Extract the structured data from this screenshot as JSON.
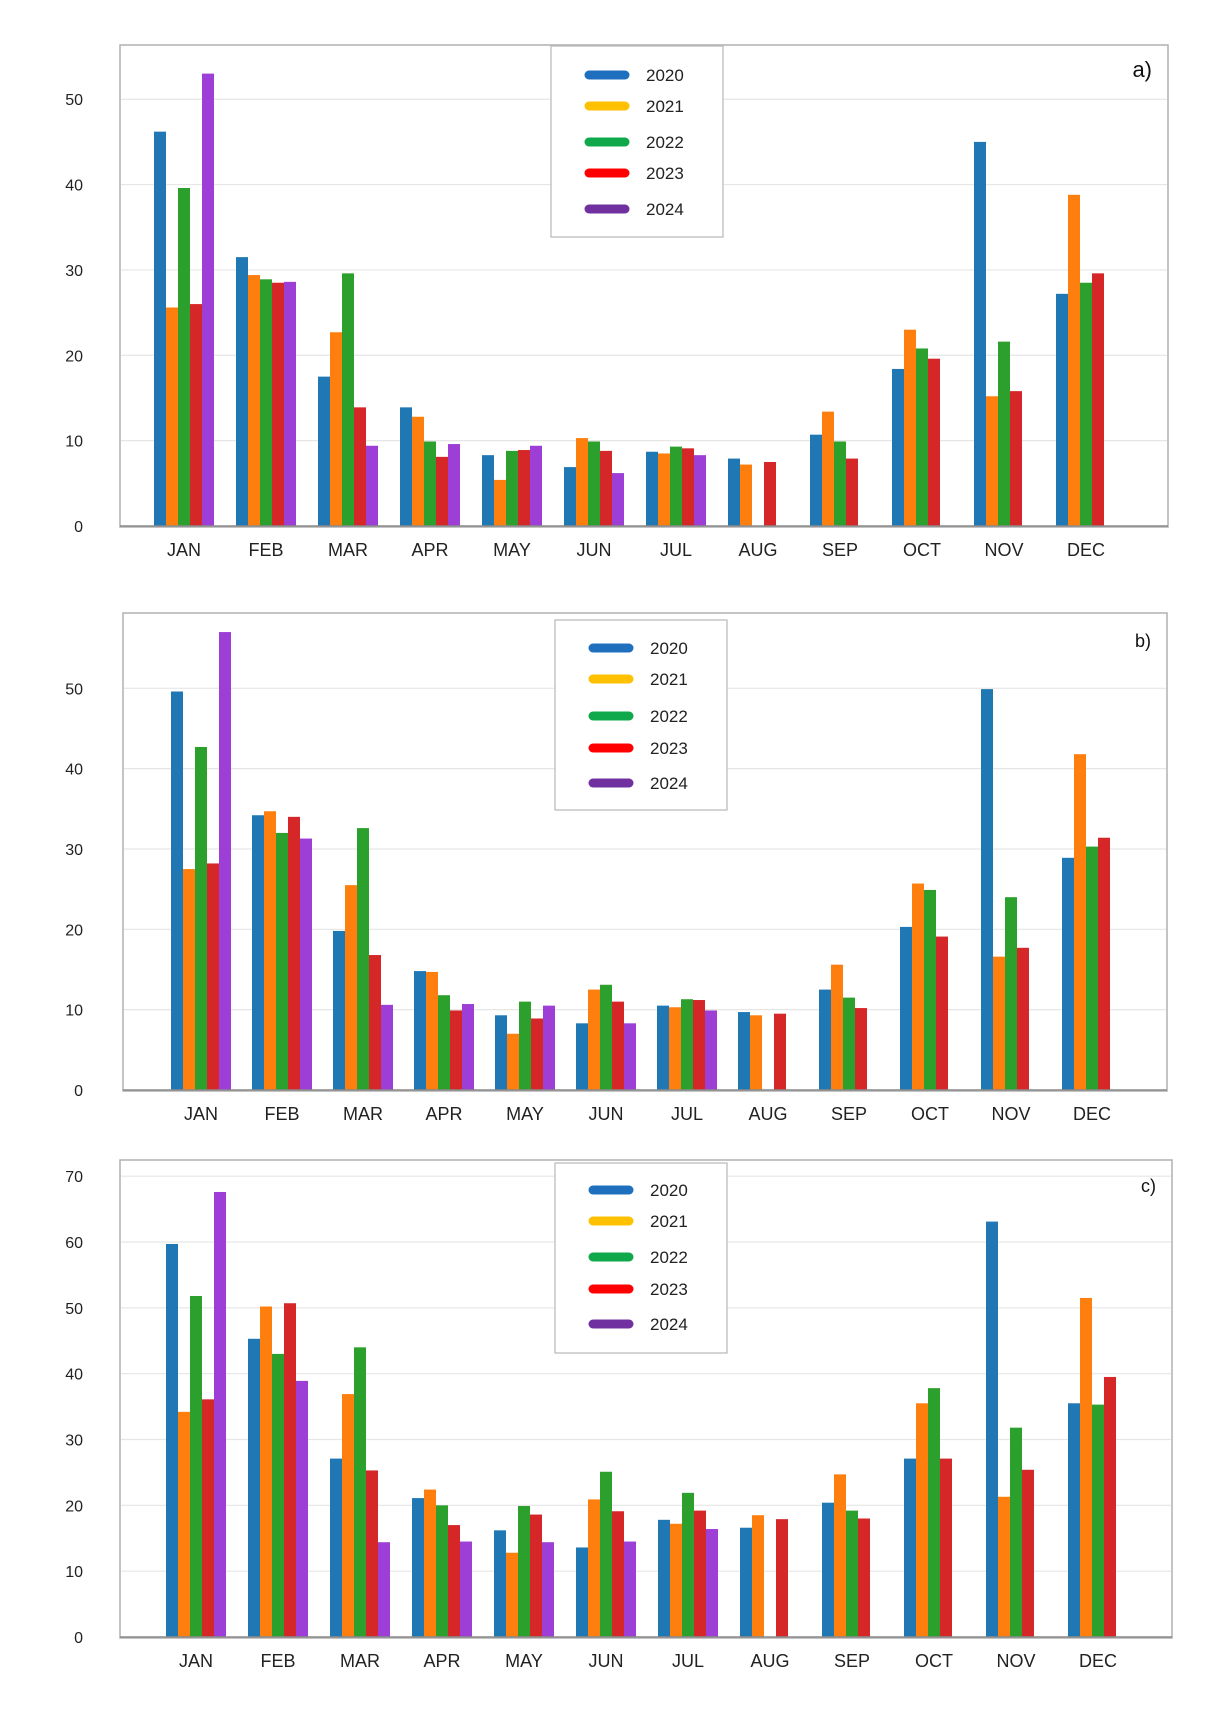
{
  "months": [
    "JAN",
    "FEB",
    "MAR",
    "APR",
    "MAY",
    "JUN",
    "JUL",
    "AUG",
    "SEP",
    "OCT",
    "NOV",
    "DEC"
  ],
  "legend": [
    {
      "name": "2020",
      "legend_color": "#1f6fbf"
    },
    {
      "name": "2021",
      "legend_color": "#ffc000"
    },
    {
      "name": "2022",
      "legend_color": "#0fa84a"
    },
    {
      "name": "2023",
      "legend_color": "#ff0000"
    },
    {
      "name": "2024",
      "legend_color": "#7030a0"
    }
  ],
  "series_colors": [
    "#1f77b4",
    "#ff7f0e",
    "#2ca02c",
    "#d62728",
    "#9d3fd6"
  ],
  "chart_data": [
    {
      "type": "bar",
      "panel_label": "a)",
      "categories": [
        "JAN",
        "FEB",
        "MAR",
        "APR",
        "MAY",
        "JUN",
        "JUL",
        "AUG",
        "SEP",
        "OCT",
        "NOV",
        "DEC"
      ],
      "ylim": [
        0,
        56
      ],
      "yticks": [
        0,
        10,
        20,
        30,
        40,
        50
      ],
      "grid": true,
      "legend_position": "top-center",
      "series": [
        {
          "name": "2020",
          "values": [
            46.2,
            31.5,
            17.5,
            13.9,
            8.3,
            6.9,
            8.7,
            7.9,
            10.7,
            18.4,
            45.0,
            27.2
          ]
        },
        {
          "name": "2021",
          "values": [
            25.6,
            29.4,
            22.7,
            12.8,
            5.4,
            10.3,
            8.5,
            7.2,
            13.4,
            23.0,
            15.2,
            38.8
          ]
        },
        {
          "name": "2022",
          "values": [
            39.6,
            28.9,
            29.6,
            9.9,
            8.8,
            9.9,
            9.3,
            null,
            9.9,
            20.8,
            21.6,
            28.5
          ]
        },
        {
          "name": "2023",
          "values": [
            26.0,
            28.5,
            13.9,
            8.1,
            8.9,
            8.8,
            9.1,
            7.5,
            7.9,
            19.6,
            15.8,
            29.6
          ]
        },
        {
          "name": "2024",
          "values": [
            53.0,
            28.6,
            9.4,
            9.6,
            9.4,
            6.2,
            8.3,
            null,
            null,
            null,
            null,
            null
          ]
        }
      ]
    },
    {
      "type": "bar",
      "panel_label": "b)",
      "categories": [
        "JAN",
        "FEB",
        "MAR",
        "APR",
        "MAY",
        "JUN",
        "JUL",
        "AUG",
        "SEP",
        "OCT",
        "NOV",
        "DEC"
      ],
      "ylim": [
        0,
        59
      ],
      "yticks": [
        0,
        10,
        20,
        30,
        40,
        50
      ],
      "grid": true,
      "legend_position": "top-center",
      "series": [
        {
          "name": "2020",
          "values": [
            49.6,
            34.2,
            19.8,
            14.8,
            9.3,
            8.3,
            10.5,
            9.7,
            12.5,
            20.3,
            49.9,
            28.9
          ]
        },
        {
          "name": "2021",
          "values": [
            27.5,
            34.7,
            25.5,
            14.7,
            7.0,
            12.5,
            10.3,
            9.3,
            15.6,
            25.7,
            16.6,
            41.8
          ]
        },
        {
          "name": "2022",
          "values": [
            42.7,
            32.0,
            32.6,
            11.8,
            11.0,
            13.1,
            11.3,
            null,
            11.5,
            24.9,
            24.0,
            30.3
          ]
        },
        {
          "name": "2023",
          "values": [
            28.2,
            34.0,
            16.8,
            9.9,
            8.9,
            11.0,
            11.2,
            9.5,
            10.2,
            19.1,
            17.7,
            31.4
          ]
        },
        {
          "name": "2024",
          "values": [
            57.0,
            31.3,
            10.6,
            10.7,
            10.5,
            8.3,
            9.9,
            null,
            null,
            null,
            null,
            null
          ]
        }
      ]
    },
    {
      "type": "bar",
      "panel_label": "c)",
      "categories": [
        "JAN",
        "FEB",
        "MAR",
        "APR",
        "MAY",
        "JUN",
        "JUL",
        "AUG",
        "SEP",
        "OCT",
        "NOV",
        "DEC"
      ],
      "ylim": [
        0,
        72
      ],
      "yticks": [
        0,
        10,
        20,
        30,
        40,
        50,
        60,
        70
      ],
      "grid": true,
      "legend_position": "top-center",
      "series": [
        {
          "name": "2020",
          "values": [
            59.7,
            45.3,
            27.1,
            21.1,
            16.2,
            13.6,
            17.8,
            16.6,
            20.4,
            27.1,
            63.1,
            35.5
          ]
        },
        {
          "name": "2021",
          "values": [
            34.2,
            50.2,
            36.9,
            22.4,
            12.8,
            20.9,
            17.2,
            18.5,
            24.7,
            35.5,
            21.3,
            51.5
          ]
        },
        {
          "name": "2022",
          "values": [
            51.8,
            43.0,
            44.0,
            20.0,
            19.9,
            25.1,
            21.9,
            null,
            19.2,
            37.8,
            31.8,
            35.3
          ]
        },
        {
          "name": "2023",
          "values": [
            36.1,
            50.7,
            25.3,
            17.0,
            18.6,
            19.1,
            19.2,
            17.9,
            18.0,
            27.1,
            25.4,
            39.5
          ]
        },
        {
          "name": "2024",
          "values": [
            67.6,
            38.9,
            14.4,
            14.5,
            14.4,
            14.5,
            16.4,
            null,
            null,
            null,
            null,
            null
          ]
        }
      ]
    }
  ]
}
